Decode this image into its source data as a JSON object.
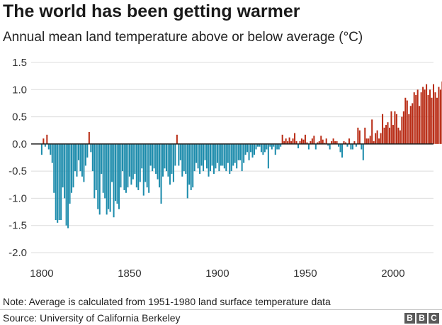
{
  "header": {
    "title": "The world has been getting warmer",
    "subtitle": "Annual mean land temperature above or below average (°C)"
  },
  "footer": {
    "note": "Note: Average is calculated from 1951-1980 land surface temperature data",
    "source": "Source: University of California Berkeley",
    "logo_letters": [
      "B",
      "B",
      "C"
    ]
  },
  "colors": {
    "positive": "#b92d16",
    "negative": "#1d8cac",
    "grid": "#dcdcdc",
    "zero_line": "#222222"
  },
  "chart_data": {
    "type": "bar",
    "title": "The world has been getting warmer",
    "subtitle": "Annual mean land temperature above or below average (°C)",
    "xlabel": "",
    "ylabel": "",
    "xlim": [
      1794,
      2023
    ],
    "ylim": [
      -2.0,
      1.5
    ],
    "y_ticks": [
      "1.5",
      "1.0",
      "0.5",
      "0.0",
      "-0.5",
      "-1.0",
      "-1.5",
      "-2.0"
    ],
    "x_ticks": [
      "1800",
      "1850",
      "1900",
      "1950",
      "2000"
    ],
    "grid": true,
    "series": [
      {
        "x_start": 1800,
        "values": [
          -0.2,
          0.1,
          -0.05,
          0.17,
          -0.1,
          -0.2,
          -0.35,
          -0.9,
          -1.4,
          -1.45,
          -1.4,
          -1.4,
          -0.8,
          -1.0,
          -1.5,
          -1.55,
          -1.1,
          -0.9,
          -0.8,
          -0.5,
          -0.6,
          -0.3,
          -0.5,
          -0.6,
          -0.7,
          -0.4,
          -0.25,
          0.22,
          -0.15,
          -0.5,
          -1.0,
          -0.85,
          -1.2,
          -1.3,
          -0.55,
          -0.9,
          -1.0,
          -1.3,
          -1.2,
          -1.25,
          -0.7,
          -1.35,
          -1.05,
          -1.1,
          -1.2,
          -0.8,
          -0.5,
          -0.85,
          -0.9,
          -0.8,
          -0.6,
          -0.75,
          -0.65,
          -0.55,
          -0.8,
          -0.85,
          -0.7,
          -0.45,
          -0.95,
          -0.7,
          -0.8,
          -0.9,
          -0.4,
          -0.5,
          -0.45,
          -0.55,
          -0.65,
          -0.8,
          -1.1,
          -0.6,
          -0.45,
          -0.5,
          -0.6,
          -0.75,
          -0.55,
          -0.7,
          -0.4,
          0.17,
          -0.4,
          -0.3,
          -0.6,
          -0.5,
          -0.55,
          -1.0,
          -0.75,
          -0.85,
          -0.8,
          -0.5,
          -0.35,
          -0.45,
          -0.55,
          -0.4,
          -0.5,
          -0.3,
          -0.45,
          -0.6,
          -0.5,
          -0.4,
          -0.55,
          -0.45,
          -0.35,
          -0.5,
          -0.4,
          -0.4,
          -0.45,
          -0.5,
          -0.35,
          -0.55,
          -0.5,
          -0.4,
          -0.35,
          -0.45,
          -0.3,
          -0.3,
          -0.5,
          -0.35,
          -0.2,
          -0.15,
          -0.3,
          -0.15,
          -0.25,
          -0.2,
          -0.1,
          -0.05,
          -0.05,
          -0.15,
          -0.2,
          -0.15,
          -0.1,
          -0.45,
          -0.05,
          -0.1,
          -0.05,
          -0.2,
          -0.1,
          -0.1,
          -0.05,
          0.17,
          0.05,
          0.1,
          0.05,
          0.12,
          0.05,
          0.1,
          0.2,
          0.05,
          -0.08,
          0.05,
          0.1,
          0.08,
          0.17,
          0.03,
          -0.1,
          0.05,
          0.1,
          0.15,
          -0.1,
          0.03,
          0.05,
          0.15,
          0.08,
          0.02,
          0.1,
          -0.03,
          -0.1,
          0.05,
          0.1,
          0.05,
          0.05,
          -0.05,
          -0.15,
          -0.25,
          0.05,
          0.03,
          -0.05,
          0.1,
          -0.1,
          -0.1,
          0.05,
          -0.05,
          0.3,
          0.25,
          -0.1,
          -0.3,
          0.3,
          0.1,
          0.1,
          0.15,
          0.45,
          0.05,
          0.2,
          0.25,
          0.1,
          0.2,
          0.55,
          0.3,
          0.35,
          0.4,
          0.3,
          0.6,
          0.35,
          0.6,
          0.55,
          0.3,
          0.25,
          0.5,
          0.6,
          0.85,
          0.8,
          0.55,
          0.7,
          0.75,
          0.95,
          0.9,
          1.0,
          0.7,
          0.95,
          1.05,
          1.0,
          1.1,
          0.9,
          1.0,
          0.85,
          1.1,
          0.95,
          0.85,
          1.05,
          1.0,
          1.15,
          1.1,
          1.0,
          0.9,
          1.1,
          1.15,
          1.25,
          1.4,
          1.3,
          1.1
        ]
      }
    ]
  }
}
